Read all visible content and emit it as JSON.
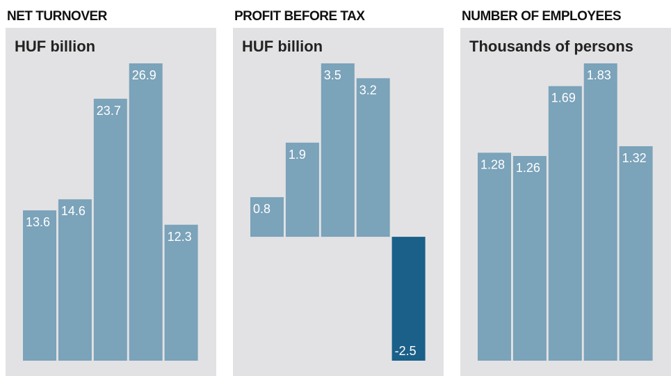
{
  "chart_data": [
    {
      "type": "bar",
      "title": "NET TURNOVER",
      "subtitle": "HUF billion",
      "values": [
        13.6,
        14.6,
        23.7,
        26.9,
        12.3
      ],
      "color": "#7ba3ba",
      "negative_color": "#1a6089"
    },
    {
      "type": "bar",
      "title": "PROFIT BEFORE TAX",
      "subtitle": "HUF billion",
      "values": [
        0.8,
        1.9,
        3.5,
        3.2,
        -2.5
      ],
      "color": "#7ba3ba",
      "negative_color": "#1a6089"
    },
    {
      "type": "bar",
      "title": "NUMBER OF EMPLOYEES",
      "subtitle": "Thousands of persons",
      "values": [
        1.28,
        1.26,
        1.69,
        1.83,
        1.32
      ],
      "color": "#7ba3ba",
      "negative_color": "#1a6089"
    }
  ]
}
